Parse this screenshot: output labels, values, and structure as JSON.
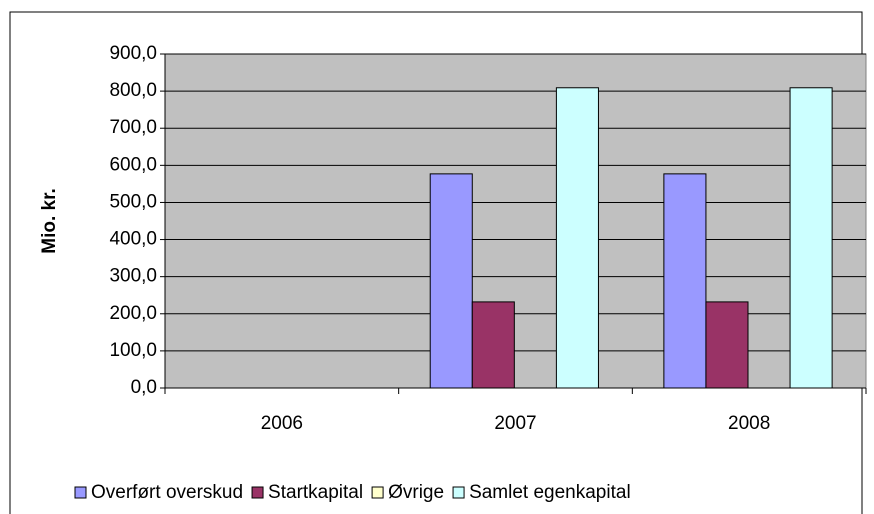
{
  "chart_data": {
    "type": "bar",
    "y_label": "Mio. kr.",
    "categories": [
      "2006",
      "2007",
      "2008"
    ],
    "series": [
      {
        "name": "Overført overskud",
        "color": "#9999ff",
        "values": [
          null,
          577,
          577
        ]
      },
      {
        "name": "Startkapital",
        "color": "#993366",
        "values": [
          null,
          232,
          232
        ]
      },
      {
        "name": "Øvrige",
        "color": "#ffffcc",
        "values": [
          null,
          0,
          0
        ]
      },
      {
        "name": "Samlet egenkapital",
        "color": "#ccffff",
        "values": [
          null,
          809,
          809
        ]
      }
    ],
    "ylim": [
      0,
      900
    ],
    "yticks": [
      {
        "value": 0,
        "label": "0,0"
      },
      {
        "value": 100,
        "label": "100,0"
      },
      {
        "value": 200,
        "label": "200,0"
      },
      {
        "value": 300,
        "label": "300,0"
      },
      {
        "value": 400,
        "label": "400,0"
      },
      {
        "value": 500,
        "label": "500,0"
      },
      {
        "value": 600,
        "label": "600,0"
      },
      {
        "value": 700,
        "label": "700,0"
      },
      {
        "value": 800,
        "label": "800,0"
      },
      {
        "value": 900,
        "label": "900,0"
      }
    ],
    "grid": true,
    "legend": "bottom"
  }
}
